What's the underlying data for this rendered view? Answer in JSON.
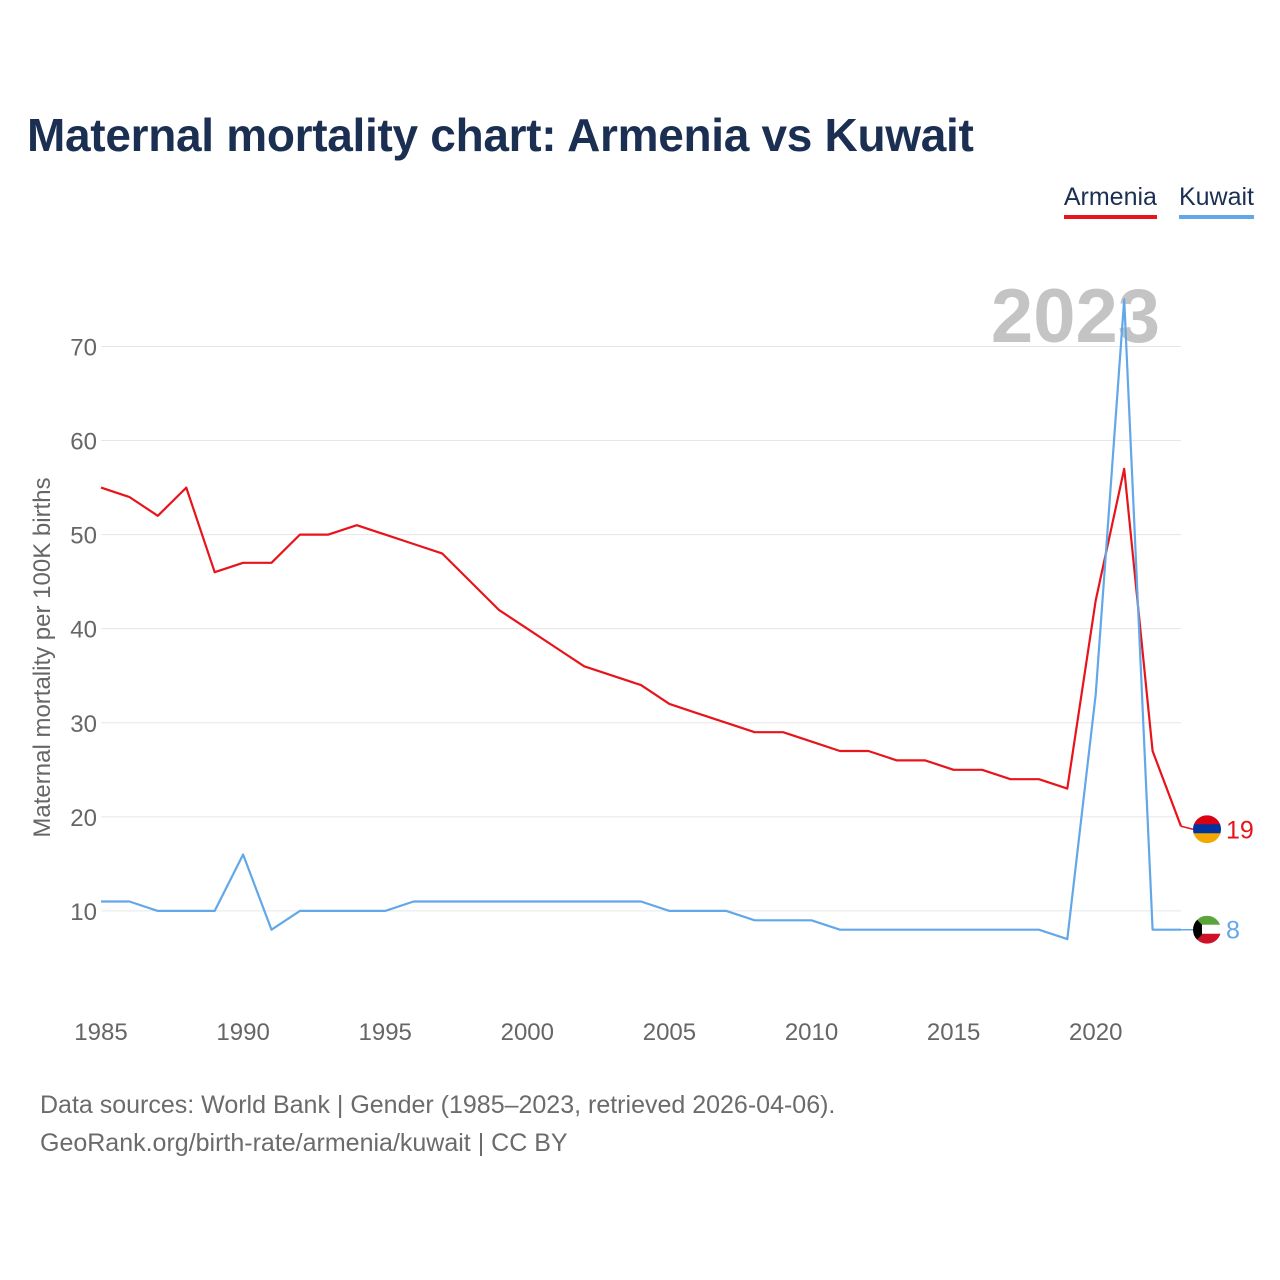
{
  "title": "Maternal mortality chart: Armenia vs Kuwait",
  "legend": [
    {
      "name": "Armenia",
      "color": "#e8141b"
    },
    {
      "name": "Kuwait",
      "color": "#62a8e8"
    }
  ],
  "year_label": "2023",
  "footer": {
    "line1": "Data sources: World Bank | Gender (1985–2023, retrieved 2026-04-06).",
    "line2": "GeoRank.org/birth-rate/armenia/kuwait | CC BY"
  },
  "chart_data": {
    "type": "line",
    "title": "Maternal mortality chart: Armenia vs Kuwait",
    "xlabel": "",
    "ylabel": "Maternal mortality per 100K births",
    "x": [
      1985,
      1986,
      1987,
      1988,
      1989,
      1990,
      1991,
      1992,
      1993,
      1994,
      1995,
      1996,
      1997,
      1998,
      1999,
      2000,
      2001,
      2002,
      2003,
      2004,
      2005,
      2006,
      2007,
      2008,
      2009,
      2010,
      2011,
      2012,
      2013,
      2014,
      2015,
      2016,
      2017,
      2018,
      2019,
      2020,
      2021,
      2022,
      2023
    ],
    "xticks": [
      "1985",
      "1990",
      "1995",
      "2000",
      "2005",
      "2010",
      "2015",
      "2020"
    ],
    "xlim": [
      1985,
      2023
    ],
    "yticks": [
      "10",
      "20",
      "30",
      "40",
      "50",
      "60",
      "70"
    ],
    "ylim": [
      0,
      76
    ],
    "grid": true,
    "legend_position": "top-right",
    "series": [
      {
        "name": "Armenia",
        "color": "#e8141b",
        "end_label": "19",
        "values": [
          55,
          54,
          52,
          55,
          46,
          47,
          47,
          50,
          50,
          51,
          50,
          49,
          48,
          45,
          42,
          40,
          38,
          36,
          35,
          34,
          32,
          31,
          30,
          29,
          29,
          28,
          27,
          27,
          26,
          26,
          25,
          25,
          24,
          24,
          23,
          43,
          57,
          27,
          19
        ]
      },
      {
        "name": "Kuwait",
        "color": "#62a8e8",
        "end_label": "8",
        "values": [
          11,
          11,
          10,
          10,
          10,
          16,
          8,
          10,
          10,
          10,
          10,
          11,
          11,
          11,
          11,
          11,
          11,
          11,
          11,
          11,
          10,
          10,
          10,
          9,
          9,
          9,
          8,
          8,
          8,
          8,
          8,
          8,
          8,
          8,
          7,
          33,
          75,
          8,
          8
        ]
      }
    ]
  }
}
